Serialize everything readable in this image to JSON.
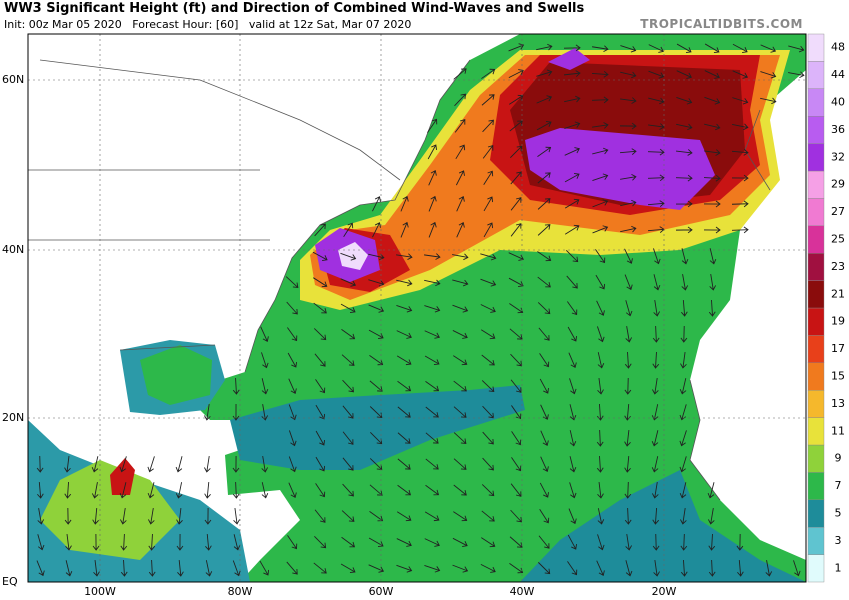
{
  "header": {
    "title": "WW3 Significant Height (ft) and Direction of Combined Wind-Waves and Swells",
    "subtitle": "Init: 00z Mar 05 2020   Forecast Hour: [60]   valid at 12z Sat, Mar 07 2020",
    "brand": "TROPICALTIDBITS.COM"
  },
  "map": {
    "lat_labels": [
      "60N",
      "40N",
      "20N",
      "EQ"
    ],
    "lon_labels": [
      "100W",
      "80W",
      "60W",
      "40W",
      "20W"
    ]
  },
  "colorbar": {
    "levels": [
      1,
      3,
      5,
      7,
      9,
      11,
      13,
      15,
      17,
      19,
      21,
      23,
      25,
      27,
      29,
      32,
      36,
      40,
      44,
      48
    ],
    "colors": [
      "#e0fbfc",
      "#5fc4d0",
      "#1e8c9a",
      "#2db84a",
      "#8fd23a",
      "#e8e23a",
      "#f5b82c",
      "#f07a1e",
      "#e8401a",
      "#c81414",
      "#8a0c0c",
      "#a01040",
      "#d8329a",
      "#f07ad2",
      "#f5a0e6",
      "#a030e0",
      "#b85cf0",
      "#c888f5",
      "#dcb4fa",
      "#f0dcfc"
    ]
  }
}
